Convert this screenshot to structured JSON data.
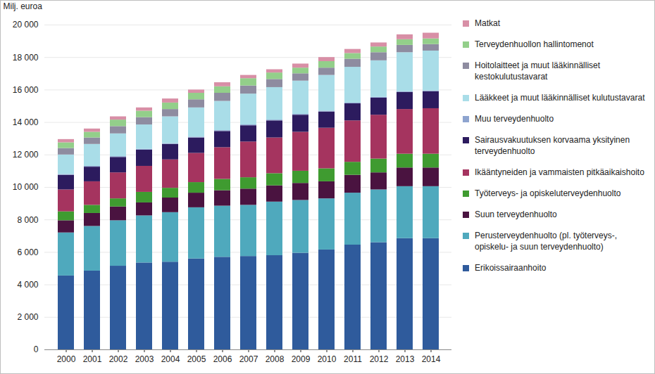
{
  "chart_data": {
    "type": "bar",
    "stacked": true,
    "grid": true,
    "legend": "right",
    "y_label": "Milj. euroa",
    "categories": [
      "2000",
      "2001",
      "2002",
      "2003",
      "2004",
      "2005",
      "2006",
      "2007",
      "2008",
      "2009",
      "2010",
      "2011",
      "2012",
      "2013",
      "2014"
    ],
    "ylim": [
      0,
      20000
    ],
    "yticks": [
      0,
      {
        "value": 2000,
        "label": "2 000"
      },
      {
        "value": 4000,
        "label": "4 000"
      },
      {
        "value": 6000,
        "label": "6 000"
      },
      {
        "value": 8000,
        "label": "8 000"
      },
      {
        "value": 10000,
        "label": "10 000"
      },
      {
        "value": 12000,
        "label": "12 000"
      },
      {
        "value": 14000,
        "label": "14 000"
      },
      {
        "value": 16000,
        "label": "16 000"
      },
      {
        "value": 18000,
        "label": "18 000"
      },
      {
        "value": 20000,
        "label": "20 000"
      }
    ],
    "series": [
      {
        "name": "Erikoissairaanhoito",
        "color": "#2f5b9c",
        "values": [
          4550,
          4850,
          5150,
          5350,
          5400,
          5600,
          5700,
          5750,
          5800,
          5950,
          6150,
          6450,
          6600,
          6850,
          6850
        ]
      },
      {
        "name": "Perusterveydenhuolto (pl. työterveys-, opiskelu- ja suun terveydenhuolto)",
        "color": "#4fa9bd",
        "values": [
          2650,
          2750,
          2800,
          2900,
          3050,
          3150,
          3150,
          3150,
          3300,
          3250,
          3150,
          3200,
          3250,
          3200,
          3200
        ]
      },
      {
        "name": "Suun terveydenhuolto",
        "color": "#4a1340",
        "values": [
          750,
          800,
          850,
          800,
          900,
          900,
          950,
          1000,
          1000,
          1050,
          1050,
          1100,
          1050,
          1150,
          1150
        ]
      },
      {
        "name": "Työterveys- ja opiskeluterveydenhuolto",
        "color": "#3f9b30",
        "values": [
          550,
          500,
          500,
          650,
          600,
          650,
          700,
          700,
          750,
          750,
          800,
          800,
          850,
          850,
          850
        ]
      },
      {
        "name": "Ikääntyneiden ja vammaisten pitkäaikaishoito",
        "color": "#a5345f",
        "values": [
          1350,
          1450,
          1600,
          1600,
          1750,
          1800,
          1950,
          2200,
          2200,
          2400,
          2500,
          2550,
          2700,
          2750,
          2800
        ]
      },
      {
        "name": "Sairausvakuutuksen korvaama yksityinen terveydenhuolto",
        "color": "#2c1b5e",
        "values": [
          900,
          900,
          950,
          1000,
          950,
          950,
          1000,
          1000,
          1050,
          1050,
          1000,
          1050,
          1050,
          1050,
          1050
        ]
      },
      {
        "name": "Muu terveydenhuolto",
        "color": "#8ea4cf",
        "values": [
          50,
          50,
          50,
          50,
          50,
          50,
          50,
          50,
          50,
          50,
          50,
          50,
          50,
          50,
          50
        ]
      },
      {
        "name": "Lääkkeet ja muut lääkinnälliset kulutustavarat",
        "color": "#a9dde8",
        "values": [
          1200,
          1350,
          1400,
          1500,
          1650,
          1800,
          1800,
          1900,
          2000,
          2050,
          2200,
          2200,
          2250,
          2400,
          2450
        ]
      },
      {
        "name": "Hoitolaitteet ja muut lääkinnälliset kestokulutustavarat",
        "color": "#8e8ca0",
        "values": [
          400,
          400,
          450,
          450,
          450,
          500,
          500,
          500,
          500,
          450,
          450,
          500,
          500,
          450,
          400
        ]
      },
      {
        "name": "Terveydenhuollon hallintomenot",
        "color": "#93cf8a",
        "values": [
          350,
          350,
          400,
          400,
          400,
          400,
          400,
          450,
          400,
          350,
          400,
          350,
          350,
          350,
          350
        ]
      },
      {
        "name": "Matkat",
        "color": "#d88fa6",
        "values": [
          200,
          200,
          200,
          200,
          250,
          200,
          250,
          200,
          200,
          250,
          250,
          250,
          250,
          300,
          350
        ]
      }
    ]
  }
}
